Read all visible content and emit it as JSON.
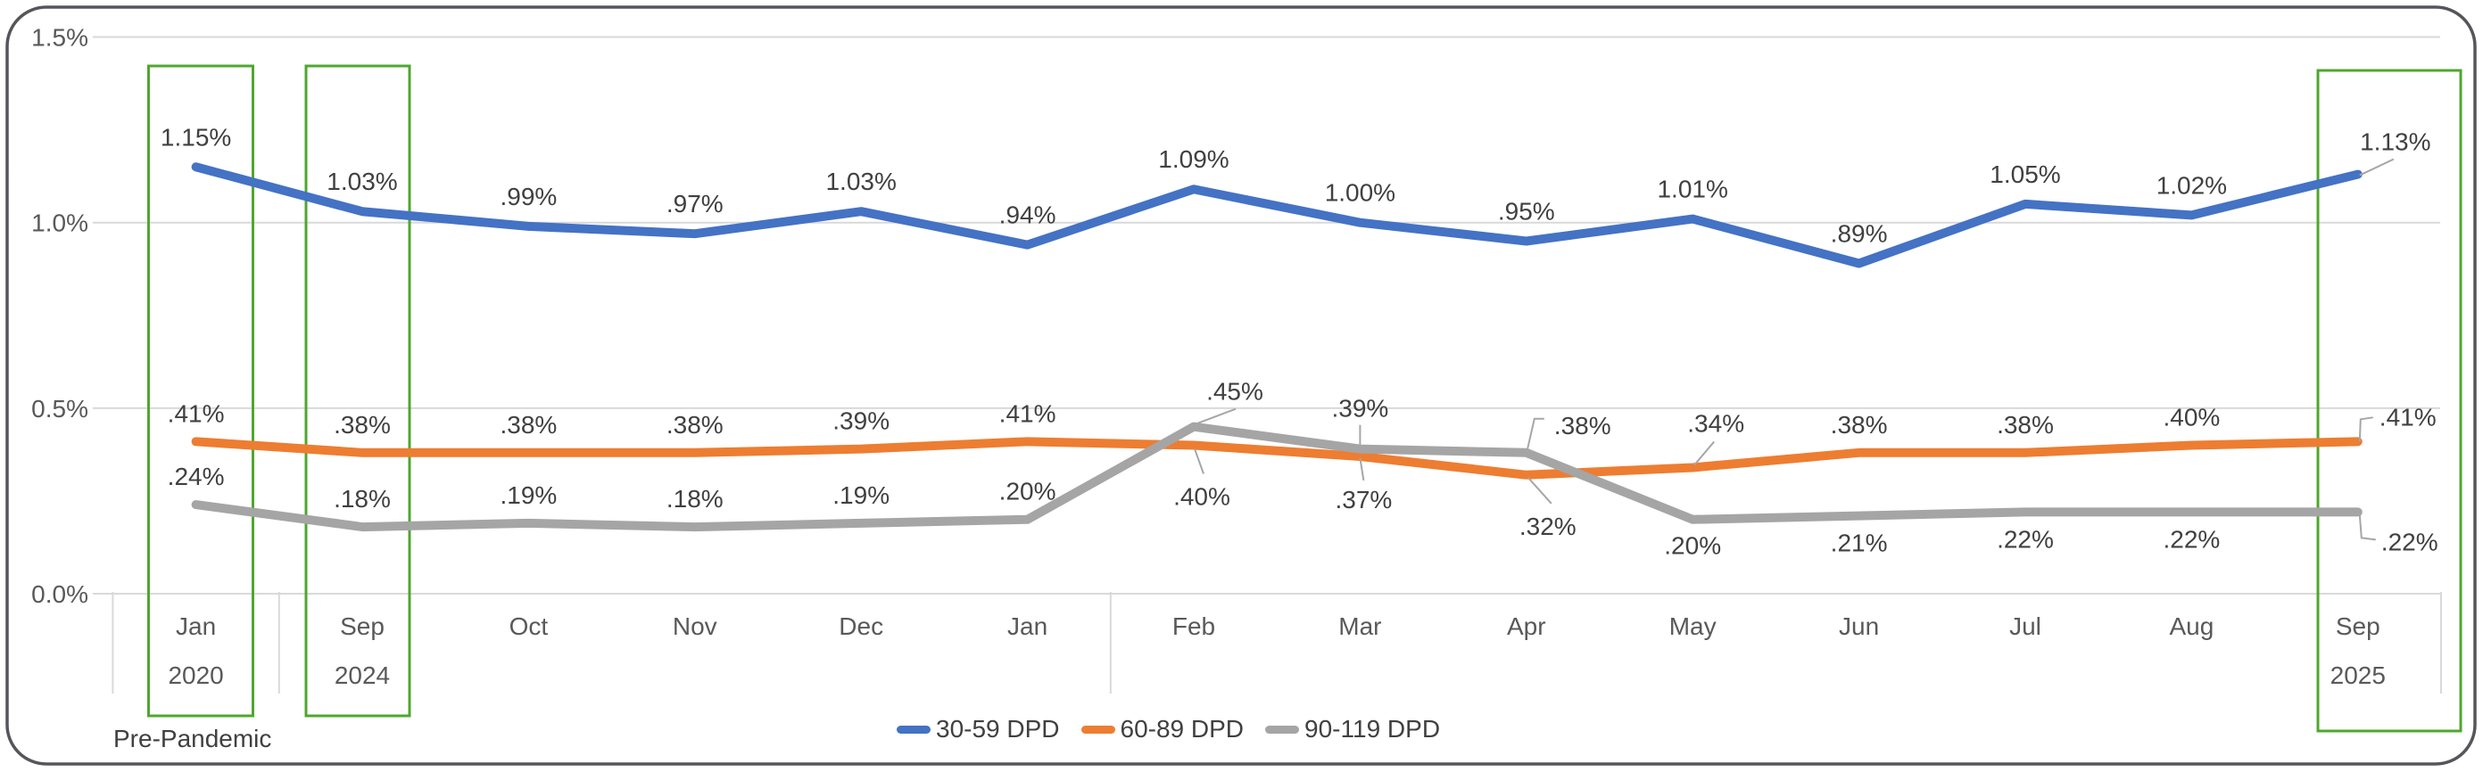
{
  "chart_data": {
    "type": "line",
    "title": "",
    "grid": true,
    "legend_position": "bottom",
    "ylim": [
      0,
      1.5
    ],
    "y_axis": {
      "ticks": [
        {
          "label": "0.0%",
          "value": 0
        },
        {
          "label": "0.5%",
          "value": 0.5
        },
        {
          "label": "1.0%",
          "value": 1
        },
        {
          "label": "1.5%",
          "value": 1.5
        }
      ]
    },
    "x_axis": {
      "categories": [
        {
          "month": "Jan",
          "year": "2020"
        },
        {
          "month": "Sep",
          "year": "2024"
        },
        {
          "month": "Oct"
        },
        {
          "month": "Nov"
        },
        {
          "month": "Dec"
        },
        {
          "month": "Jan"
        },
        {
          "month": "Feb"
        },
        {
          "month": "Mar"
        },
        {
          "month": "Apr"
        },
        {
          "month": "May"
        },
        {
          "month": "Jun"
        },
        {
          "month": "Jul"
        },
        {
          "month": "Aug"
        },
        {
          "month": "Sep",
          "year": "2025"
        }
      ],
      "separator_after_indices": [
        0,
        5
      ]
    },
    "series": [
      {
        "name": "30-59 DPD",
        "color": "#4472C4",
        "values": [
          1.15,
          1.03,
          0.99,
          0.97,
          1.03,
          0.94,
          1.09,
          1.0,
          0.95,
          1.01,
          0.89,
          1.05,
          1.02,
          1.13
        ],
        "labels": [
          "1.15%",
          "1.03%",
          ".99%",
          ".97%",
          "1.03%",
          ".94%",
          "1.09%",
          "1.00%",
          ".95%",
          "1.01%",
          ".89%",
          "1.05%",
          "1.02%",
          "1.13%"
        ]
      },
      {
        "name": "60-89 DPD",
        "color": "#ED7D31",
        "values": [
          0.41,
          0.38,
          0.38,
          0.38,
          0.39,
          0.41,
          0.4,
          0.37,
          0.32,
          0.34,
          0.38,
          0.38,
          0.4,
          0.41
        ],
        "labels": [
          ".41%",
          ".38%",
          ".38%",
          ".38%",
          ".39%",
          ".41%",
          ".40%",
          ".37%",
          ".32%",
          ".34%",
          ".38%",
          ".38%",
          ".40%",
          ".41%"
        ]
      },
      {
        "name": "90-119 DPD",
        "color": "#A5A5A5",
        "values": [
          0.24,
          0.18,
          0.19,
          0.18,
          0.19,
          0.2,
          0.45,
          0.39,
          0.38,
          0.2,
          0.21,
          0.22,
          0.22,
          0.22
        ],
        "labels": [
          ".24%",
          ".18%",
          ".19%",
          ".18%",
          ".19%",
          ".20%",
          ".45%",
          ".39%",
          ".38%",
          ".20%",
          ".21%",
          ".22%",
          ".22%",
          ".22%"
        ]
      }
    ],
    "annotations": {
      "note": "Pre-Pandemic",
      "highlight_color": "#4EA72E",
      "highlight_boxes": [
        {
          "category": "Jan 2020",
          "category_index": 0
        },
        {
          "category": "Sep 2024",
          "category_index": 1
        },
        {
          "category": "Sep 2025",
          "category_index": 13
        }
      ]
    }
  }
}
